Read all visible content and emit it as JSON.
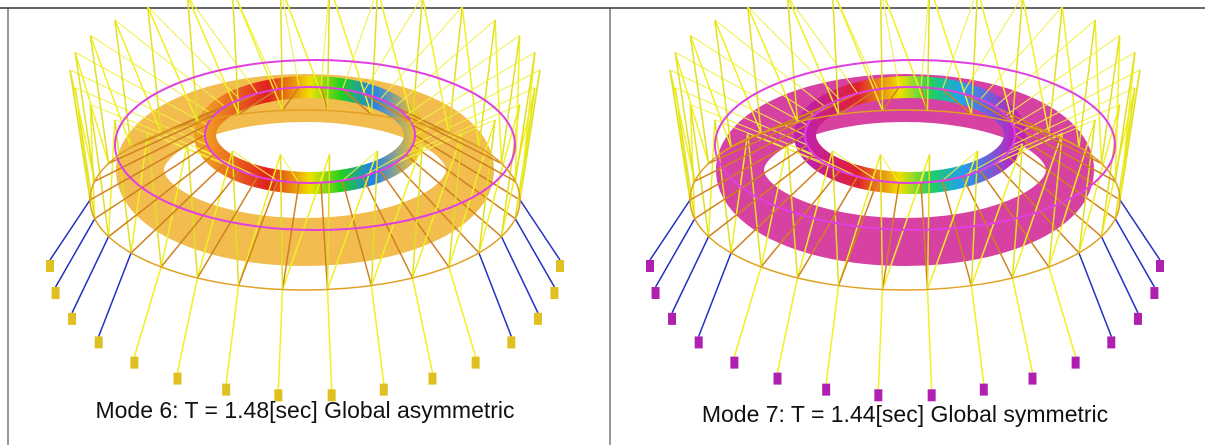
{
  "panels": [
    {
      "caption": "Mode 6: T = 1.48[sec] Global asymmetric"
    },
    {
      "caption": "Mode 7: T = 1.44[sec] Global symmetric"
    }
  ]
}
